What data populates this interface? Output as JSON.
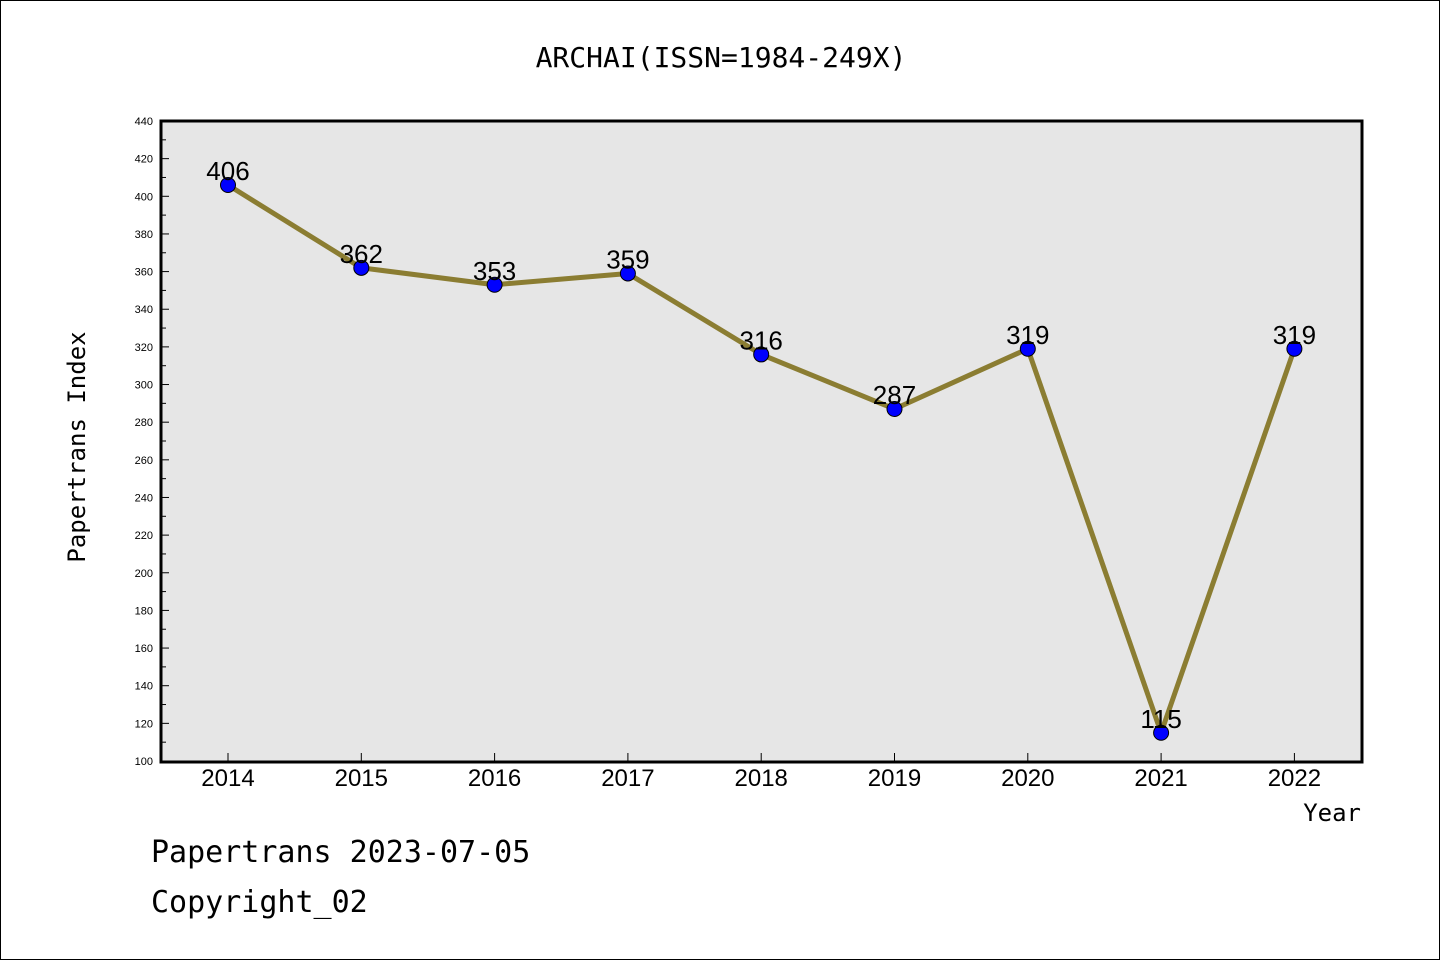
{
  "chart_data": {
    "type": "line",
    "title": "ARCHAI(ISSN=1984-249X)",
    "xlabel": "Year",
    "ylabel": "Papertrans Index",
    "categories": [
      "2014",
      "2015",
      "2016",
      "2017",
      "2018",
      "2019",
      "2020",
      "2021",
      "2022"
    ],
    "series": [
      {
        "values": [
          406,
          362,
          353,
          359,
          316,
          287,
          319,
          115,
          319
        ]
      }
    ],
    "ylim": [
      100,
      440
    ],
    "yticks": [
      100,
      120,
      140,
      160,
      180,
      200,
      220,
      240,
      260,
      280,
      300,
      320,
      340,
      360,
      380,
      400,
      420,
      440
    ],
    "grid": false,
    "colors": {
      "line": "#8B7D32",
      "marker": "#0000FF",
      "plot_background": "#E6E6E6"
    }
  },
  "footer": {
    "line1": "Papertrans 2023-07-05",
    "line2": "Copyright_02"
  }
}
